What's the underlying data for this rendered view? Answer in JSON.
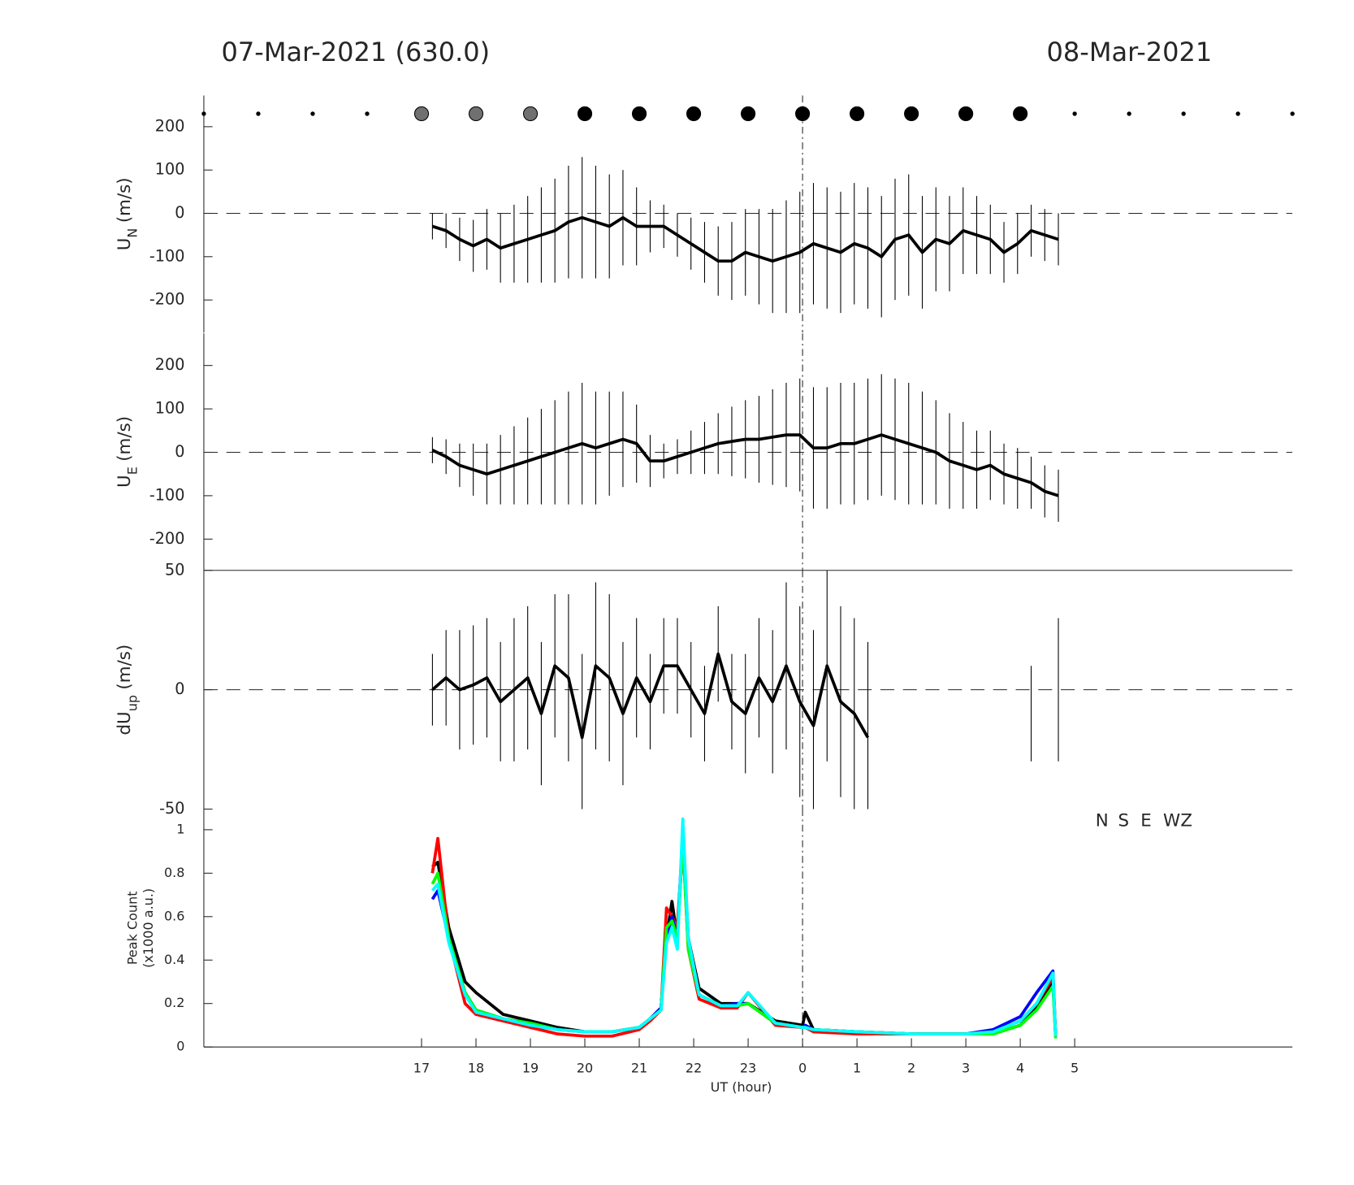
{
  "chart_data": [
    {
      "type": "errorbar_line",
      "title": "07-Mar-2021 (630.0)",
      "title_right": "08-Mar-2021",
      "ylabel": {
        "main": "U",
        "sub": "N",
        "unit": "(m/s)"
      },
      "xlim": [
        13,
        33
      ],
      "ylim": [
        -275,
        272
      ],
      "yticks": [
        -200,
        -100,
        0,
        100,
        200
      ],
      "zero_line": true,
      "vline": 24,
      "color": "#000000",
      "markers": {
        "x": [
          13,
          14,
          15,
          16,
          17,
          18,
          19,
          20,
          21,
          22,
          23,
          24,
          25,
          26,
          27,
          28,
          29,
          30,
          31,
          32,
          33
        ],
        "kind": [
          "small",
          "small",
          "small",
          "small",
          "gray",
          "gray",
          "gray",
          "black",
          "black",
          "black",
          "black",
          "black",
          "black",
          "black",
          "black",
          "black",
          "small",
          "small",
          "small",
          "small",
          "small"
        ],
        "colors": {
          "small": "#000000",
          "gray": "#707070",
          "black": "#000000"
        }
      },
      "x": [
        17.2,
        17.45,
        17.7,
        17.95,
        18.2,
        18.45,
        18.7,
        18.95,
        19.2,
        19.45,
        19.7,
        19.95,
        20.2,
        20.45,
        20.7,
        20.95,
        21.2,
        21.45,
        21.7,
        21.95,
        22.2,
        22.45,
        22.7,
        22.95,
        23.2,
        23.45,
        23.7,
        23.95,
        24.2,
        24.45,
        24.7,
        24.95,
        25.2,
        25.45,
        25.7,
        25.95,
        26.2,
        26.45,
        26.7,
        26.95,
        27.2,
        27.45,
        27.7,
        27.95,
        28.2,
        28.45,
        28.7
      ],
      "values": [
        -30,
        -40,
        -60,
        -75,
        -60,
        -80,
        -70,
        -60,
        -50,
        -40,
        -20,
        -10,
        -20,
        -30,
        -10,
        -30,
        -30,
        -30,
        -50,
        -70,
        -90,
        -110,
        -110,
        -90,
        -100,
        -110,
        -100,
        -90,
        -70,
        -80,
        -90,
        -70,
        -80,
        -100,
        -60,
        -50,
        -90,
        -60,
        -70,
        -40,
        -50,
        -60,
        -90,
        -70,
        -40,
        -50,
        -60
      ],
      "errors": [
        30,
        40,
        50,
        60,
        70,
        80,
        90,
        100,
        110,
        120,
        130,
        140,
        130,
        120,
        110,
        90,
        60,
        50,
        50,
        60,
        70,
        80,
        90,
        100,
        110,
        120,
        130,
        140,
        140,
        140,
        140,
        140,
        140,
        140,
        140,
        140,
        130,
        120,
        110,
        100,
        90,
        80,
        70,
        70,
        60,
        60,
        60
      ]
    },
    {
      "type": "errorbar_line",
      "ylabel": {
        "main": "U",
        "sub": "E",
        "unit": "(m/s)"
      },
      "xlim": [
        13,
        33
      ],
      "ylim": [
        -272,
        274
      ],
      "yticks": [
        -200,
        -100,
        0,
        100,
        200
      ],
      "zero_line": true,
      "vline": 24,
      "color": "#000000",
      "x": [
        17.2,
        17.45,
        17.7,
        17.95,
        18.2,
        18.45,
        18.7,
        18.95,
        19.2,
        19.45,
        19.7,
        19.95,
        20.2,
        20.45,
        20.7,
        20.95,
        21.2,
        21.45,
        21.7,
        21.95,
        22.2,
        22.45,
        22.7,
        22.95,
        23.2,
        23.45,
        23.7,
        23.95,
        24.2,
        24.45,
        24.7,
        24.95,
        25.2,
        25.45,
        25.7,
        25.95,
        26.2,
        26.45,
        26.7,
        26.95,
        27.2,
        27.45,
        27.7,
        27.95,
        28.2,
        28.45,
        28.7
      ],
      "values": [
        5,
        -10,
        -30,
        -40,
        -50,
        -40,
        -30,
        -20,
        -10,
        0,
        10,
        20,
        10,
        20,
        30,
        20,
        -20,
        -20,
        -10,
        0,
        10,
        20,
        25,
        30,
        30,
        35,
        40,
        40,
        10,
        10,
        20,
        20,
        30,
        40,
        30,
        20,
        10,
        0,
        -20,
        -30,
        -40,
        -30,
        -50,
        -60,
        -70,
        -90,
        -100
      ],
      "errors": [
        30,
        40,
        50,
        60,
        70,
        80,
        90,
        100,
        110,
        120,
        130,
        140,
        130,
        120,
        110,
        90,
        60,
        40,
        40,
        50,
        60,
        70,
        80,
        90,
        100,
        110,
        120,
        130,
        140,
        140,
        140,
        140,
        140,
        140,
        140,
        140,
        130,
        120,
        110,
        100,
        90,
        80,
        70,
        70,
        60,
        60,
        60
      ]
    },
    {
      "type": "errorbar_line",
      "ylabel": {
        "main": "dU",
        "sub": "up",
        "unit": "(m/s)"
      },
      "xlim": [
        13,
        33
      ],
      "ylim": [
        -50,
        50
      ],
      "yticks": [
        -50,
        0,
        50
      ],
      "zero_line": true,
      "vline": 24,
      "color": "#000000",
      "x": [
        17.2,
        17.45,
        17.7,
        17.95,
        18.2,
        18.45,
        18.7,
        18.95,
        19.2,
        19.45,
        19.7,
        19.95,
        20.2,
        20.45,
        20.7,
        20.95,
        21.2,
        21.45,
        21.7,
        21.95,
        22.2,
        22.45,
        22.7,
        22.95,
        23.2,
        23.45,
        23.7,
        23.95,
        24.2,
        24.45,
        24.7,
        24.95,
        25.2,
        25.45,
        25.7,
        25.95,
        26.2,
        26.45,
        26.7,
        26.95,
        27.2,
        27.45,
        27.7,
        27.95,
        28.2,
        28.45,
        28.7
      ],
      "values": [
        0,
        5,
        0,
        2,
        5,
        -5,
        0,
        5,
        -10,
        10,
        5,
        -20,
        10,
        5,
        -10,
        5,
        -5,
        10,
        10,
        0,
        -10,
        15,
        -5,
        -10,
        5,
        -5,
        10,
        -5,
        -15,
        10,
        -5,
        -10,
        -20,
        null,
        null,
        null,
        null,
        null,
        null,
        null,
        null,
        null,
        null,
        null,
        -10,
        null,
        0
      ],
      "errors": [
        15,
        20,
        25,
        25,
        25,
        25,
        30,
        30,
        30,
        30,
        35,
        35,
        35,
        35,
        30,
        25,
        20,
        20,
        20,
        20,
        20,
        20,
        20,
        25,
        25,
        30,
        35,
        40,
        40,
        40,
        40,
        40,
        40,
        null,
        null,
        null,
        null,
        null,
        null,
        null,
        null,
        null,
        null,
        null,
        20,
        null,
        30
      ]
    },
    {
      "type": "line",
      "ylabel": [
        "Peak Count",
        "(x1000 a.u.)"
      ],
      "xlabel": "UT (hour)",
      "xlim": [
        13,
        33
      ],
      "ylim": [
        0,
        1.095
      ],
      "yticks": [
        0,
        0.2,
        0.4,
        0.6,
        0.8,
        1
      ],
      "vline": 24,
      "xticks": [
        17,
        18,
        19,
        20,
        21,
        22,
        23,
        {
          "value": 24,
          "label": "0"
        },
        {
          "value": 25,
          "label": "1"
        },
        {
          "value": 26,
          "label": "2"
        },
        {
          "value": 27,
          "label": "3"
        },
        {
          "value": 28,
          "label": "4"
        },
        {
          "value": 29,
          "label": "5"
        }
      ],
      "x": [
        17.2,
        17.3,
        17.5,
        17.8,
        18,
        18.5,
        19,
        19.5,
        20,
        20.5,
        21,
        21.2,
        21.4,
        21.5,
        21.6,
        21.7,
        21.8,
        21.9,
        22.1,
        22.5,
        22.8,
        23,
        23.5,
        24,
        24.05,
        24.2,
        25,
        26,
        27,
        27.5,
        28,
        28.3,
        28.6,
        28.65
      ],
      "series": [
        {
          "name": "N",
          "color": "#000000",
          "values": [
            0.83,
            0.85,
            0.55,
            0.3,
            0.25,
            0.15,
            0.12,
            0.09,
            0.07,
            0.07,
            0.09,
            0.13,
            0.18,
            0.5,
            0.67,
            0.5,
            0.95,
            0.5,
            0.27,
            0.2,
            0.2,
            0.2,
            0.12,
            0.1,
            0.16,
            0.08,
            0.07,
            0.06,
            0.06,
            0.06,
            0.1,
            0.18,
            0.3,
            0.05
          ]
        },
        {
          "name": "S",
          "color": "#ff0000",
          "values": [
            0.8,
            0.96,
            0.5,
            0.2,
            0.15,
            0.12,
            0.09,
            0.06,
            0.05,
            0.05,
            0.08,
            0.12,
            0.17,
            0.64,
            0.6,
            0.55,
            0.95,
            0.45,
            0.22,
            0.18,
            0.18,
            0.25,
            0.1,
            0.09,
            0.09,
            0.07,
            0.06,
            0.06,
            0.06,
            0.07,
            0.12,
            0.2,
            0.32,
            0.05
          ]
        },
        {
          "name": "E",
          "color": "#0000ff",
          "values": [
            0.68,
            0.72,
            0.5,
            0.25,
            0.17,
            0.13,
            0.1,
            0.08,
            0.07,
            0.07,
            0.09,
            0.13,
            0.18,
            0.5,
            0.6,
            0.5,
            1.0,
            0.5,
            0.24,
            0.19,
            0.2,
            0.2,
            0.11,
            0.09,
            0.1,
            0.08,
            0.07,
            0.06,
            0.06,
            0.08,
            0.14,
            0.25,
            0.35,
            0.05
          ]
        },
        {
          "name": "W",
          "color": "#00ff00",
          "values": [
            0.75,
            0.8,
            0.5,
            0.25,
            0.17,
            0.13,
            0.11,
            0.08,
            0.07,
            0.07,
            0.09,
            0.13,
            0.17,
            0.55,
            0.58,
            0.5,
            0.95,
            0.45,
            0.24,
            0.19,
            0.19,
            0.2,
            0.11,
            0.09,
            0.09,
            0.08,
            0.07,
            0.06,
            0.06,
            0.06,
            0.1,
            0.17,
            0.28,
            0.04
          ]
        },
        {
          "name": "Z",
          "color": "#00ffff",
          "values": [
            0.72,
            0.75,
            0.48,
            0.24,
            0.16,
            0.13,
            0.1,
            0.08,
            0.07,
            0.07,
            0.09,
            0.13,
            0.17,
            0.48,
            0.55,
            0.45,
            1.05,
            0.5,
            0.24,
            0.19,
            0.19,
            0.25,
            0.11,
            0.09,
            0.09,
            0.08,
            0.07,
            0.06,
            0.06,
            0.07,
            0.12,
            0.2,
            0.34,
            0.05
          ]
        }
      ]
    }
  ]
}
